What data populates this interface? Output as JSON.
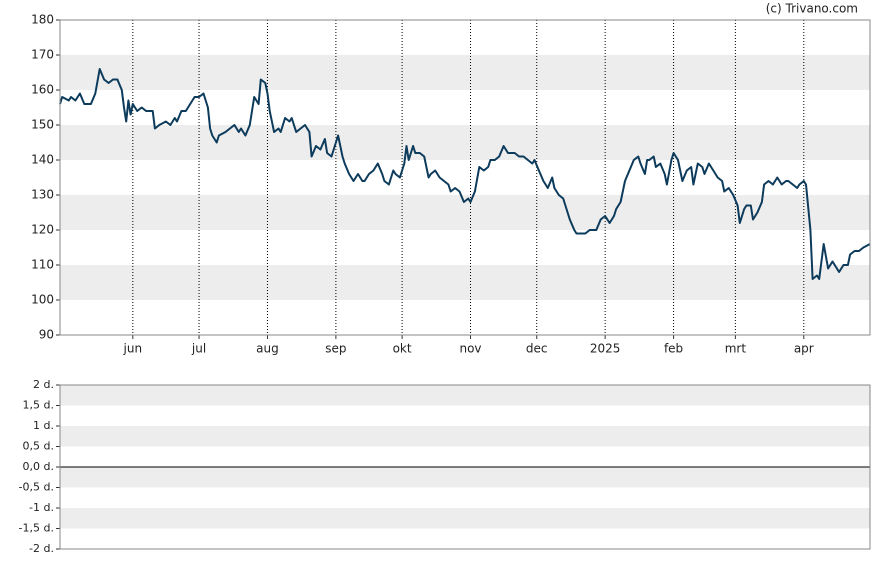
{
  "credit": "(c) Trivano.com",
  "chart_data": [
    {
      "type": "line",
      "x": [
        0,
        1,
        4,
        5,
        7,
        9,
        11,
        14,
        16,
        18,
        20,
        22,
        24,
        26,
        28,
        29,
        30,
        31,
        32,
        33,
        35,
        37,
        39,
        42,
        43,
        45,
        48,
        50,
        52,
        53,
        55,
        57,
        59,
        61,
        63,
        65,
        67,
        68,
        69,
        71,
        72,
        75,
        77,
        79,
        81,
        82,
        84,
        86,
        88,
        90,
        91,
        93,
        94,
        95,
        97,
        99,
        100,
        102,
        104,
        105,
        107,
        109,
        111,
        113,
        114,
        116,
        118,
        120,
        121,
        123,
        124,
        126,
        128,
        129,
        131,
        133,
        135,
        137,
        138,
        140,
        142,
        144,
        146,
        147,
        149,
        151,
        152,
        154,
        156,
        157,
        158,
        160,
        161,
        163,
        165,
        167,
        168,
        170,
        172,
        174,
        176,
        177,
        179,
        181,
        183,
        185,
        186,
        188,
        190,
        192,
        194,
        195,
        197,
        199,
        201,
        203,
        205,
        206,
        208,
        210,
        212,
        214,
        215,
        217,
        219,
        221,
        223,
        224,
        226,
        228,
        229,
        231,
        233,
        234,
        236,
        238,
        240,
        242,
        243,
        245,
        247,
        249,
        251,
        252,
        254,
        256,
        258,
        260,
        262,
        263,
        265,
        266,
        267,
        269,
        270,
        272,
        274,
        275,
        277,
        278,
        280,
        282,
        284,
        286,
        287,
        289,
        291,
        292,
        294,
        296,
        298,
        300,
        301,
        303,
        305,
        307,
        308,
        310,
        311,
        313,
        314,
        316,
        318,
        319,
        321,
        323,
        325,
        327,
        329,
        330,
        332,
        334,
        335,
        337,
        338,
        340,
        341,
        343,
        344,
        346,
        348,
        350,
        351,
        353,
        355,
        357,
        358,
        360,
        362,
        364,
        367
      ],
      "series": [
        {
          "color": "#0d3b5c",
          "values": [
            156,
            158,
            157,
            158,
            157,
            159,
            156,
            156,
            159,
            166,
            163,
            162,
            163,
            163,
            160,
            155,
            151,
            157,
            153,
            156,
            154,
            155,
            154,
            154,
            149,
            150,
            151,
            150,
            152,
            151,
            154,
            154,
            156,
            158,
            158,
            159,
            155,
            149,
            147,
            145,
            147,
            148,
            149,
            150,
            148,
            149,
            147,
            150,
            158,
            156,
            163,
            162,
            159,
            154,
            148,
            149,
            148,
            152,
            151,
            152,
            148,
            149,
            150,
            148,
            141,
            144,
            143,
            146,
            142,
            141,
            143,
            147,
            141,
            139,
            136,
            134,
            136,
            134,
            134,
            136,
            137,
            139,
            136,
            134,
            133,
            137,
            136,
            135,
            139,
            144,
            140,
            144,
            142,
            142,
            141,
            135,
            136,
            137,
            135,
            134,
            133,
            131,
            132,
            131,
            128,
            129,
            128,
            131,
            138,
            137,
            138,
            140,
            140,
            141,
            144,
            142,
            142,
            142,
            141,
            141,
            140,
            139,
            140,
            137,
            134,
            132,
            135,
            132,
            130,
            129,
            127,
            123,
            120,
            119,
            119,
            119,
            120,
            120,
            120,
            123,
            124,
            122,
            124,
            126,
            128,
            134,
            137,
            140,
            141,
            139,
            136,
            140,
            140,
            141,
            138,
            139,
            136,
            133,
            140,
            142,
            140,
            134,
            137,
            138,
            133,
            139,
            138,
            136,
            139,
            137,
            135,
            134,
            131,
            132,
            130,
            127,
            122,
            126,
            127,
            127,
            123,
            125,
            128,
            133,
            134,
            133,
            135,
            133,
            134,
            134,
            133,
            132,
            133,
            134,
            133,
            120,
            106,
            107,
            106,
            116,
            109,
            111,
            110,
            108,
            110,
            110,
            113,
            114,
            114,
            115,
            116
          ]
        }
      ],
      "xlim": [
        0,
        367
      ],
      "xticks": [
        {
          "value": 33,
          "label": "jun"
        },
        {
          "value": 63,
          "label": "jul"
        },
        {
          "value": 94,
          "label": "aug"
        },
        {
          "value": 125,
          "label": "sep"
        },
        {
          "value": 155,
          "label": "okt"
        },
        {
          "value": 186,
          "label": "nov"
        },
        {
          "value": 216,
          "label": "dec"
        },
        {
          "value": 247,
          "label": "2025"
        },
        {
          "value": 278,
          "label": "feb"
        },
        {
          "value": 306,
          "label": "mrt"
        },
        {
          "value": 337,
          "label": "apr"
        }
      ],
      "ylim": [
        90,
        180
      ],
      "yticks": [
        90,
        100,
        110,
        120,
        130,
        140,
        150,
        160,
        170,
        180
      ],
      "bands": true
    },
    {
      "type": "line",
      "ylim": [
        -2,
        2
      ],
      "yticks": [
        {
          "value": -2,
          "label": "-2 d."
        },
        {
          "value": -1.5,
          "label": "-1,5 d."
        },
        {
          "value": -1,
          "label": "-1 d."
        },
        {
          "value": -0.5,
          "label": "-0,5 d."
        },
        {
          "value": 0,
          "label": "0,0 d."
        },
        {
          "value": 0.5,
          "label": "0,5 d."
        },
        {
          "value": 1,
          "label": "1 d."
        },
        {
          "value": 1.5,
          "label": "1,5 d."
        },
        {
          "value": 2,
          "label": "2 d."
        }
      ],
      "bands": true,
      "zero_line": true
    }
  ]
}
